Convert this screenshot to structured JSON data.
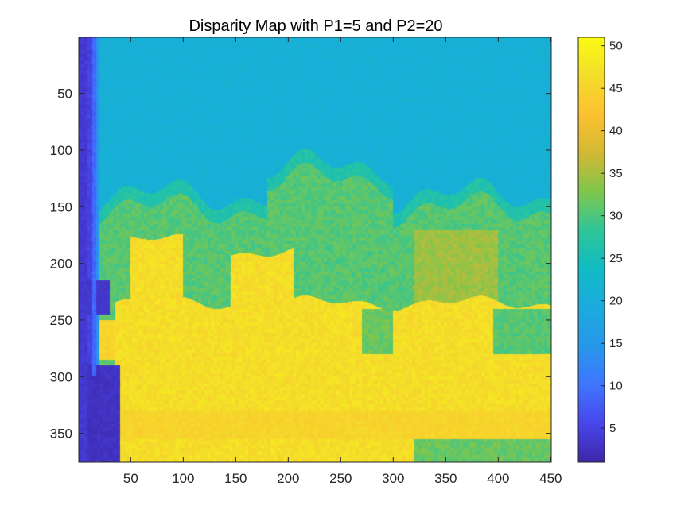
{
  "chart_data": {
    "type": "heatmap",
    "title": "Disparity Map with P1=5 and P2=20",
    "xlabel": "",
    "ylabel": "",
    "xlim": [
      0.5,
      450.5
    ],
    "ylim": [
      0.5,
      375.5
    ],
    "y_reversed": true,
    "x_ticks": [
      50,
      100,
      150,
      200,
      250,
      300,
      350,
      400,
      450
    ],
    "y_ticks": [
      50,
      100,
      150,
      200,
      250,
      300,
      350
    ],
    "colormap": "parula",
    "colormap_stops": [
      "#3e26a8",
      "#4746eb",
      "#3f75ff",
      "#2797ea",
      "#1caadf",
      "#10bbc4",
      "#2fc598",
      "#7fc64d",
      "#d2b834",
      "#fcc12f",
      "#f4dd2a",
      "#f9fb15"
    ],
    "clim": [
      1,
      51
    ],
    "colorbar_ticks": [
      5,
      10,
      15,
      20,
      25,
      30,
      35,
      40,
      45,
      50
    ],
    "grid": false,
    "colorbar": "right",
    "regions": [
      {
        "label": "left border strip",
        "x": [
          1,
          20
        ],
        "y": [
          1,
          375
        ],
        "value": 3
      },
      {
        "label": "sky / background",
        "x": [
          20,
          450
        ],
        "y": [
          1,
          140
        ],
        "value": 20
      },
      {
        "label": "middle band",
        "x": [
          20,
          450
        ],
        "y": [
          140,
          235
        ],
        "value": 30
      },
      {
        "label": "lower foreground",
        "x": [
          35,
          450
        ],
        "y": [
          190,
          375
        ],
        "value": 46
      },
      {
        "label": "bottom-left corner",
        "x": [
          20,
          45
        ],
        "y": [
          290,
          375
        ],
        "value": 2
      }
    ]
  }
}
